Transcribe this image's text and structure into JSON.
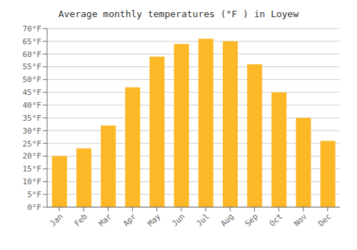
{
  "chart_data": {
    "type": "bar",
    "title": "Average monthly temperatures (°F ) in Loyew",
    "categories": [
      "Jan",
      "Feb",
      "Mar",
      "Apr",
      "May",
      "Jun",
      "Jul",
      "Aug",
      "Sep",
      "Oct",
      "Nov",
      "Dec"
    ],
    "values": [
      20,
      23,
      32,
      47,
      59,
      64,
      66,
      65,
      56,
      45,
      35,
      26
    ],
    "color": "#FDB827",
    "ylim": [
      0,
      70
    ],
    "yticks": [
      {
        "value": 0,
        "label": "0°F"
      },
      {
        "value": 5,
        "label": "5°F"
      },
      {
        "value": 10,
        "label": "10°F"
      },
      {
        "value": 15,
        "label": "15°F"
      },
      {
        "value": 20,
        "label": "20°F"
      },
      {
        "value": 25,
        "label": "25°F"
      },
      {
        "value": 30,
        "label": "30°F"
      },
      {
        "value": 35,
        "label": "35°F"
      },
      {
        "value": 40,
        "label": "40°F"
      },
      {
        "value": 45,
        "label": "45°F"
      },
      {
        "value": 50,
        "label": "50°F"
      },
      {
        "value": 55,
        "label": "55°F"
      },
      {
        "value": 60,
        "label": "60°F"
      },
      {
        "value": 65,
        "label": "65°F"
      },
      {
        "value": 70,
        "label": "70°F"
      }
    ],
    "grid": true
  }
}
